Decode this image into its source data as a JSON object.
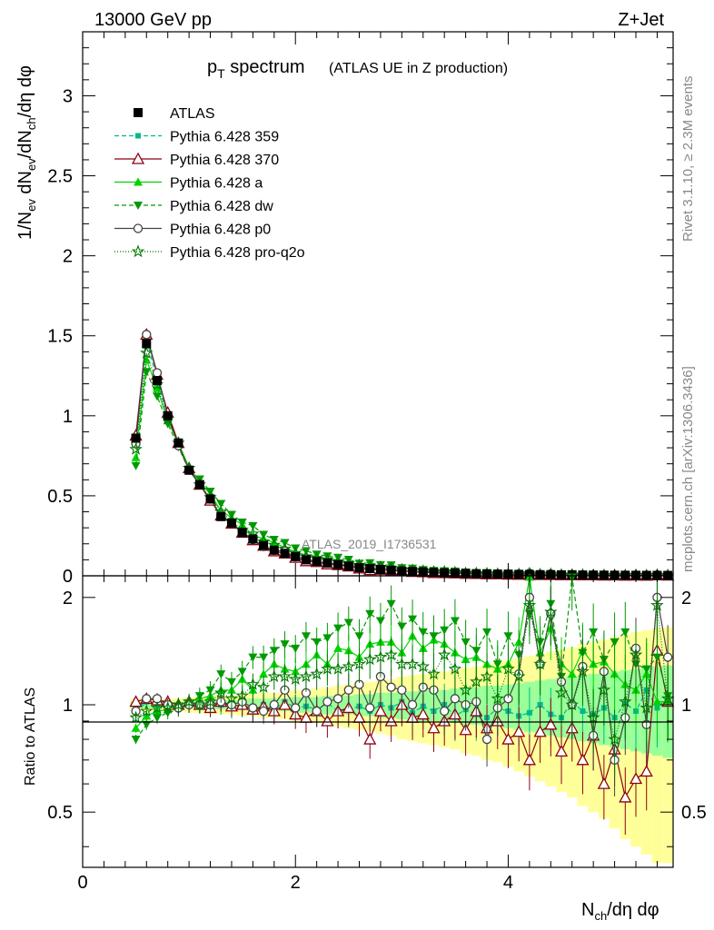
{
  "header": {
    "left": "13000 GeV pp",
    "right": "Z+Jet"
  },
  "side": {
    "rivet": "Rivet 3.1.10, ≥ 2.3M events",
    "mcplots": "mcplots.cern.ch [arXiv:1306.3436]"
  },
  "watermark": "ATLAS_2019_I1736531",
  "title": {
    "main_p": "p",
    "main_sub": "T",
    "main_rest": " spectrum",
    "paren": "(ATLAS UE in Z production)"
  },
  "axes": {
    "ylabel_main": "1/N_ev dN_ev/dN_ch/dη dφ",
    "ylabel_ratio": "Ratio to ATLAS",
    "xlabel": "N_ch/dη dφ"
  },
  "colors": {
    "atlas": "#000000",
    "p359": "#00b98b",
    "p370": "#8b0012",
    "pa": "#00d400",
    "pdw": "#009a00",
    "pp0": "#444444",
    "pq2o": "#007a00",
    "band_yellow": "#ffff99",
    "band_green": "#99ff99"
  },
  "chart_data": {
    "type": "scatter",
    "title": "p_T spectrum (ATLAS UE in Z production)",
    "xlabel": "N_ch/dη dφ",
    "ylabel": "1/N_ev dN_ev/dN_ch/dη dφ",
    "xlim": [
      0,
      5.55
    ],
    "ylim_main": [
      0,
      3.4
    ],
    "ylim_ratio": [
      0.35,
      2.3
    ],
    "main_yticks": [
      "0",
      "0.5",
      "1",
      "1.5",
      "2",
      "2.5",
      "3"
    ],
    "ratio_yticks": [
      "0.5",
      "1",
      "2"
    ],
    "xticks": [
      "0",
      "2",
      "4"
    ],
    "legend_position": "top-left",
    "legend": [
      {
        "key": "atlas",
        "label": "ATLAS"
      },
      {
        "key": "p359",
        "label": "Pythia 6.428 359"
      },
      {
        "key": "p370",
        "label": "Pythia 6.428 370"
      },
      {
        "key": "pa",
        "label": "Pythia 6.428 a"
      },
      {
        "key": "pdw",
        "label": "Pythia 6.428 dw"
      },
      {
        "key": "pp0",
        "label": "Pythia 6.428 p0"
      },
      {
        "key": "pq2o",
        "label": "Pythia 6.428 pro-q2o"
      }
    ],
    "x": [
      0.5,
      0.6,
      0.7,
      0.8,
      0.9,
      1.0,
      1.1,
      1.2,
      1.3,
      1.4,
      1.5,
      1.6,
      1.7,
      1.8,
      1.9,
      2.0,
      2.1,
      2.2,
      2.3,
      2.4,
      2.5,
      2.6,
      2.7,
      2.8,
      2.9,
      3.0,
      3.1,
      3.2,
      3.3,
      3.4,
      3.5,
      3.6,
      3.7,
      3.8,
      3.9,
      4.0,
      4.1,
      4.2,
      4.3,
      4.4,
      4.5,
      4.6,
      4.7,
      4.8,
      4.9,
      5.0,
      5.1,
      5.2,
      5.3,
      5.4,
      5.5
    ],
    "atlas_values": [
      0.86,
      1.45,
      1.22,
      1.0,
      0.83,
      0.66,
      0.57,
      0.48,
      0.37,
      0.33,
      0.27,
      0.23,
      0.19,
      0.16,
      0.14,
      0.12,
      0.1,
      0.09,
      0.08,
      0.07,
      0.06,
      0.05,
      0.045,
      0.04,
      0.035,
      0.03,
      0.027,
      0.024,
      0.021,
      0.019,
      0.017,
      0.015,
      0.013,
      0.012,
      0.011,
      0.01,
      0.009,
      0.008,
      0.007,
      0.0065,
      0.006,
      0.0055,
      0.005,
      0.0045,
      0.004,
      0.0037,
      0.0034,
      0.0031,
      0.0028,
      0.0026,
      0.0024
    ],
    "ratio_band_x": [
      0.5,
      0.6,
      0.7,
      0.8,
      0.9,
      1.0,
      1.1,
      1.2,
      1.3,
      1.4,
      1.5,
      1.6,
      1.7,
      1.8,
      1.9,
      2.0,
      2.1,
      2.2,
      2.3,
      2.4,
      2.5,
      2.6,
      2.7,
      2.8,
      2.9,
      3.0,
      3.1,
      3.2,
      3.3,
      3.4,
      3.5,
      3.6,
      3.7,
      3.8,
      3.9,
      4.0,
      4.1,
      4.2,
      4.3,
      4.4,
      4.5,
      4.6,
      4.7,
      4.8,
      4.9,
      5.0,
      5.1,
      5.2,
      5.3,
      5.4,
      5.5
    ],
    "ratio_band_green": [
      0.02,
      0.02,
      0.02,
      0.02,
      0.02,
      0.02,
      0.03,
      0.03,
      0.03,
      0.03,
      0.03,
      0.04,
      0.04,
      0.04,
      0.04,
      0.05,
      0.05,
      0.05,
      0.06,
      0.06,
      0.06,
      0.07,
      0.07,
      0.08,
      0.08,
      0.09,
      0.09,
      0.1,
      0.1,
      0.1,
      0.11,
      0.12,
      0.12,
      0.13,
      0.13,
      0.14,
      0.15,
      0.16,
      0.17,
      0.18,
      0.19,
      0.2,
      0.21,
      0.22,
      0.23,
      0.24,
      0.25,
      0.26,
      0.27,
      0.28,
      0.29
    ],
    "ratio_band_yellow": [
      0.04,
      0.04,
      0.04,
      0.04,
      0.04,
      0.05,
      0.05,
      0.06,
      0.06,
      0.06,
      0.07,
      0.07,
      0.08,
      0.08,
      0.09,
      0.1,
      0.1,
      0.11,
      0.12,
      0.13,
      0.14,
      0.15,
      0.16,
      0.17,
      0.18,
      0.2,
      0.21,
      0.22,
      0.23,
      0.24,
      0.25,
      0.27,
      0.28,
      0.3,
      0.31,
      0.33,
      0.35,
      0.37,
      0.39,
      0.41,
      0.43,
      0.45,
      0.48,
      0.5,
      0.52,
      0.55,
      0.58,
      0.6,
      0.62,
      0.64,
      0.65
    ],
    "series": [
      {
        "key": "p359",
        "values": [
          0.95,
          1.02,
          1.0,
          1.0,
          0.98,
          1.0,
          1.0,
          0.98,
          1.0,
          0.98,
          0.99,
          0.96,
          1.0,
          0.97,
          1.02,
          0.98,
          0.99,
          0.97,
          1.01,
          0.96,
          0.97,
          0.99,
          0.96,
          1.0,
          0.98,
          1.02,
          0.95,
          0.99,
          0.96,
          1.0,
          0.93,
          0.97,
          0.94,
          0.92,
          0.98,
          0.96,
          0.93,
          0.95,
          1.0,
          0.94,
          0.92,
          1.02,
          0.96,
          0.94,
          0.98,
          0.92,
          1.01,
          0.96,
          1.1,
          0.98,
          1.05
        ]
      },
      {
        "key": "p370",
        "values": [
          1.02,
          1.04,
          1.03,
          1.02,
          1.0,
          1.02,
          1.0,
          0.98,
          1.02,
          0.99,
          1.0,
          0.97,
          0.99,
          0.96,
          1.0,
          0.94,
          0.92,
          0.96,
          0.9,
          0.96,
          0.98,
          0.92,
          0.8,
          0.96,
          0.9,
          1.0,
          0.92,
          0.94,
          0.86,
          0.9,
          0.94,
          0.85,
          0.96,
          0.86,
          0.9,
          0.8,
          0.84,
          0.7,
          0.84,
          0.88,
          0.74,
          0.86,
          0.7,
          0.82,
          0.6,
          0.75,
          0.55,
          0.62,
          0.65,
          1.42,
          1.02
        ]
      },
      {
        "key": "pa",
        "values": [
          0.86,
          0.93,
          0.96,
          0.97,
          1.0,
          1.02,
          1.04,
          1.06,
          1.1,
          1.1,
          1.18,
          1.1,
          1.22,
          1.3,
          1.26,
          1.24,
          1.3,
          1.38,
          1.3,
          1.44,
          1.42,
          1.36,
          1.48,
          1.5,
          1.5,
          1.4,
          1.56,
          1.44,
          1.52,
          1.48,
          1.4,
          1.34,
          1.36,
          1.3,
          1.26,
          1.3,
          1.5,
          2.28,
          1.4,
          1.64,
          1.3,
          1.22,
          1.42,
          1.3,
          1.32,
          1.22,
          1.14,
          1.1,
          1.22,
          1.02,
          1.02
        ]
      },
      {
        "key": "pdw",
        "values": [
          0.8,
          0.88,
          0.92,
          0.95,
          0.97,
          1.0,
          1.06,
          1.1,
          1.22,
          1.16,
          1.24,
          1.36,
          1.36,
          1.42,
          1.48,
          1.44,
          1.56,
          1.5,
          1.54,
          1.64,
          1.7,
          1.56,
          1.8,
          1.72,
          1.92,
          1.66,
          1.74,
          1.6,
          1.56,
          1.62,
          1.72,
          1.5,
          1.42,
          1.6,
          1.3,
          1.56,
          1.38,
          1.8,
          1.5,
          1.92,
          1.2,
          2.28,
          1.4,
          1.6,
          1.34,
          1.5,
          1.6,
          1.3,
          1.26,
          1.36,
          1.06
        ]
      },
      {
        "key": "pp0",
        "values": [
          0.96,
          1.04,
          1.04,
          1.0,
          0.98,
          1.0,
          1.0,
          1.0,
          1.02,
          1.0,
          1.02,
          0.98,
          0.96,
          1.0,
          1.1,
          0.98,
          1.08,
          0.96,
          1.02,
          1.04,
          1.1,
          1.14,
          0.98,
          1.2,
          1.12,
          1.1,
          1.0,
          1.12,
          1.1,
          0.96,
          1.04,
          1.0,
          1.02,
          0.8,
          0.98,
          1.04,
          1.22,
          2.0,
          1.3,
          1.8,
          1.16,
          1.0,
          1.28,
          0.82,
          1.24,
          0.7,
          0.92,
          1.44,
          0.88,
          2.0,
          1.36
        ]
      },
      {
        "key": "pq2o",
        "values": [
          0.92,
          0.96,
          0.98,
          0.98,
          1.0,
          1.02,
          1.0,
          1.02,
          1.08,
          1.04,
          1.06,
          1.14,
          1.12,
          1.2,
          1.2,
          1.18,
          1.2,
          1.22,
          1.26,
          1.26,
          1.28,
          1.3,
          1.34,
          1.36,
          1.38,
          1.3,
          1.3,
          1.28,
          1.22,
          1.38,
          1.26,
          1.1,
          1.16,
          1.2,
          1.04,
          1.26,
          1.2,
          1.9,
          1.3,
          1.82,
          1.08,
          1.0,
          1.24,
          0.92,
          1.1,
          0.8,
          1.02,
          1.38,
          0.98,
          1.9,
          1.04
        ]
      }
    ]
  }
}
